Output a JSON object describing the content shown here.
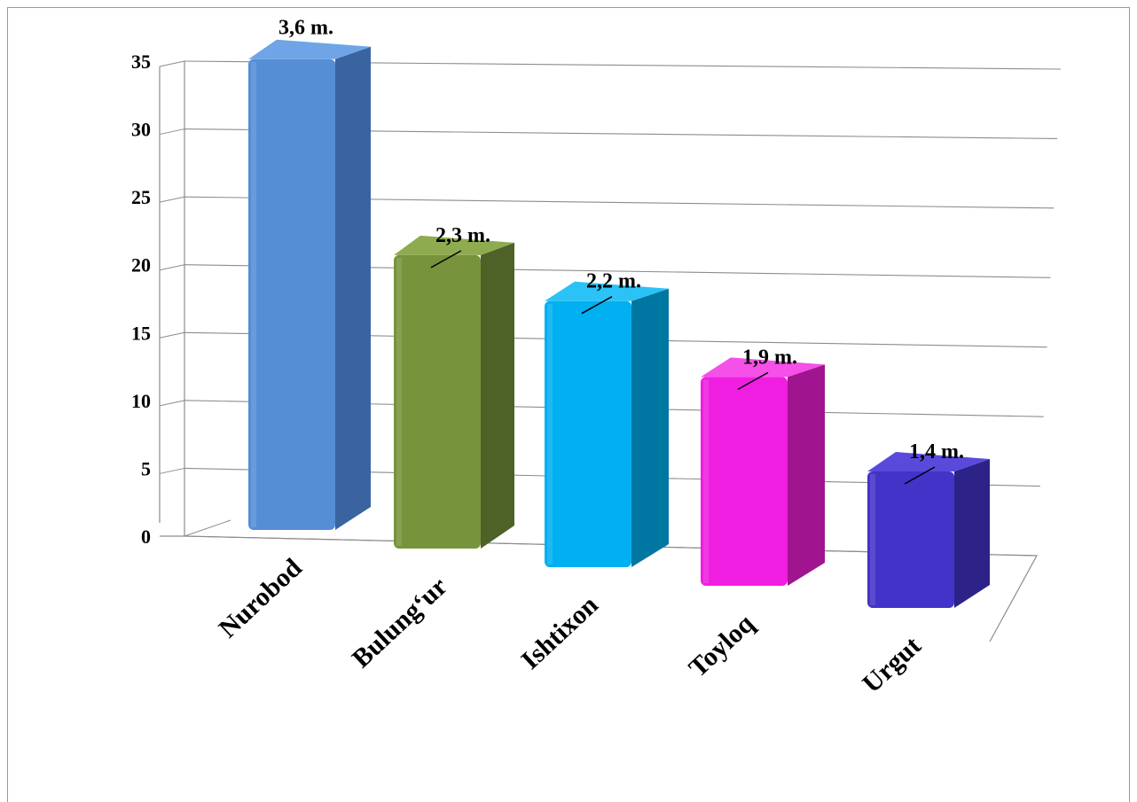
{
  "chart_data": {
    "type": "bar",
    "categories": [
      "Nurobod",
      "Bulung‘ur",
      "Ishtixon",
      "Toyloq",
      "Urgut"
    ],
    "values": [
      34.5,
      21.5,
      19.5,
      15.3,
      10
    ],
    "data_labels": [
      "3,6 m.",
      "2,3 m.",
      "2,2 m.",
      "1,9 m.",
      "1,4 m."
    ],
    "y_ticks": [
      "0",
      "5",
      "10",
      "15",
      "20",
      "25",
      "30",
      "35"
    ],
    "ylim": [
      0,
      35
    ],
    "grid": true,
    "legend": "none",
    "colors": [
      "#558ed5",
      "#77933c",
      "#00b0f0",
      "#f01ee0",
      "#4433c8"
    ],
    "side_colors": [
      "#3a64a0",
      "#4e6127",
      "#0077a2",
      "#a0158f",
      "#2d2288"
    ],
    "top_colors": [
      "#6fa5e6",
      "#8eab50",
      "#2bc2f6",
      "#f550e8",
      "#5a4adb"
    ],
    "title": "",
    "xlabel": "",
    "ylabel": ""
  }
}
